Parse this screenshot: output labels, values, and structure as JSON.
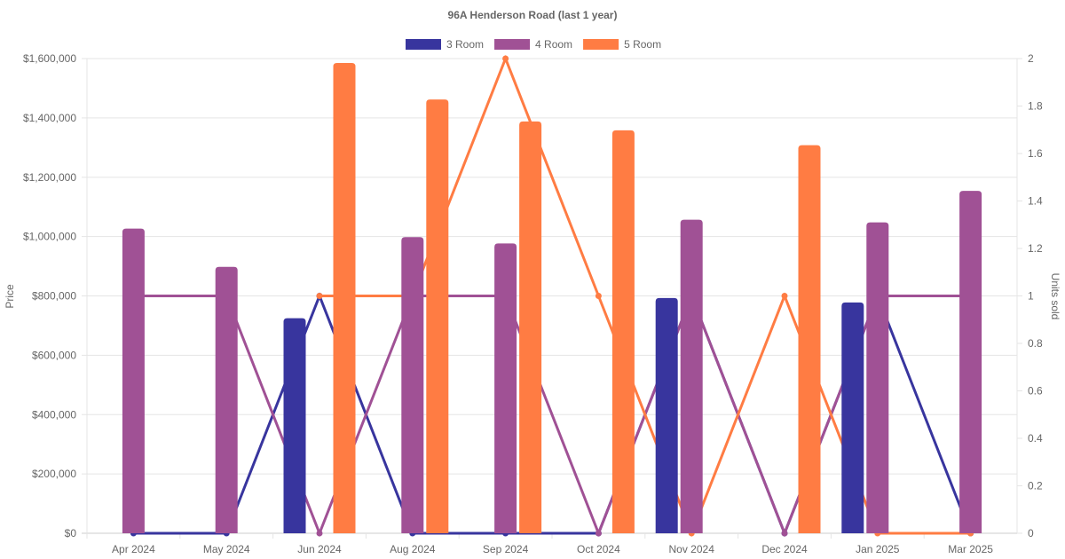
{
  "chart_data": {
    "type": "bar",
    "title": "96A Henderson Road (last 1 year)",
    "ylabel": "Price",
    "y2label": "Units sold",
    "ylim": [
      0,
      1600000
    ],
    "y2lim": [
      0,
      2
    ],
    "yticks": [
      "$0",
      "$200,000",
      "$400,000",
      "$600,000",
      "$800,000",
      "$1,000,000",
      "$1,200,000",
      "$1,400,000",
      "$1,600,000"
    ],
    "y2ticks": [
      "0",
      "0.2",
      "0.4",
      "0.6",
      "0.8",
      "1",
      "1.2",
      "1.4",
      "1.6",
      "1.8",
      "2"
    ],
    "legend_position": "top",
    "categories": [
      "Apr 2024",
      "May 2024",
      "Jun 2024",
      "Aug 2024",
      "Sep 2024",
      "Oct 2024",
      "Nov 2024",
      "Dec 2024",
      "Jan 2025",
      "Mar 2025"
    ],
    "series": [
      {
        "name": "3 Room",
        "color": "#38359e",
        "price": [
          null,
          null,
          725000,
          null,
          null,
          null,
          793000,
          null,
          778000,
          null
        ],
        "units": [
          0,
          0,
          1,
          0,
          0,
          0,
          1,
          0,
          1,
          0
        ]
      },
      {
        "name": "4 Room",
        "color": "#a05195",
        "price": [
          1027000,
          898000,
          null,
          998000,
          977000,
          null,
          1057000,
          null,
          1048000,
          1154000
        ],
        "units": [
          1,
          1,
          0,
          1,
          1,
          0,
          1,
          0,
          1,
          1
        ]
      },
      {
        "name": "5 Room",
        "color": "#ff7c43",
        "price": [
          null,
          null,
          1585000,
          1462000,
          1388000,
          1358000,
          null,
          1308000,
          null,
          null
        ],
        "units": [
          null,
          null,
          1,
          1,
          2,
          1,
          0,
          1,
          0,
          0
        ]
      }
    ]
  }
}
